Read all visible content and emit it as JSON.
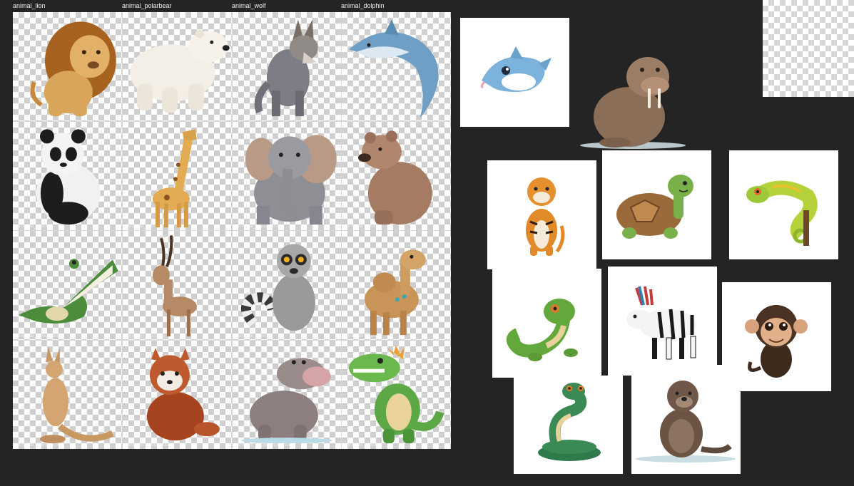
{
  "sheet": {
    "column_labels": [
      "animal_lion",
      "animal_polarbear",
      "animal_wolf",
      "animal_dolphin"
    ],
    "ghost_labels": [
      "animal_panda",
      "animal_giraffe",
      "animal_elephant",
      "animal_bear",
      "animal_crocodile",
      "animal_gazelle",
      "animal_lemur",
      "animal_camel",
      "animal_kangaroo",
      "animal_redpanda",
      "animal_hippopotamus",
      "animal_walrus"
    ],
    "cells": [
      "lion",
      "polar-bear",
      "wolf",
      "dolphin",
      "panda",
      "giraffe",
      "elephant",
      "bear",
      "crocodile",
      "gazelle",
      "lemur",
      "camel",
      "kangaroo",
      "red-panda",
      "hippo",
      "dinosaur"
    ]
  },
  "cards": [
    "dolphin",
    "walrus",
    "tiger",
    "turtle",
    "chameleon",
    "lizard",
    "zebra",
    "monkey",
    "snake",
    "otter"
  ],
  "colors": {
    "canvas": "#242424",
    "grid_line": "#d8d8d8",
    "checker": "#cfcfcf",
    "card": "#ffffff",
    "label": "#f2f2f2"
  }
}
